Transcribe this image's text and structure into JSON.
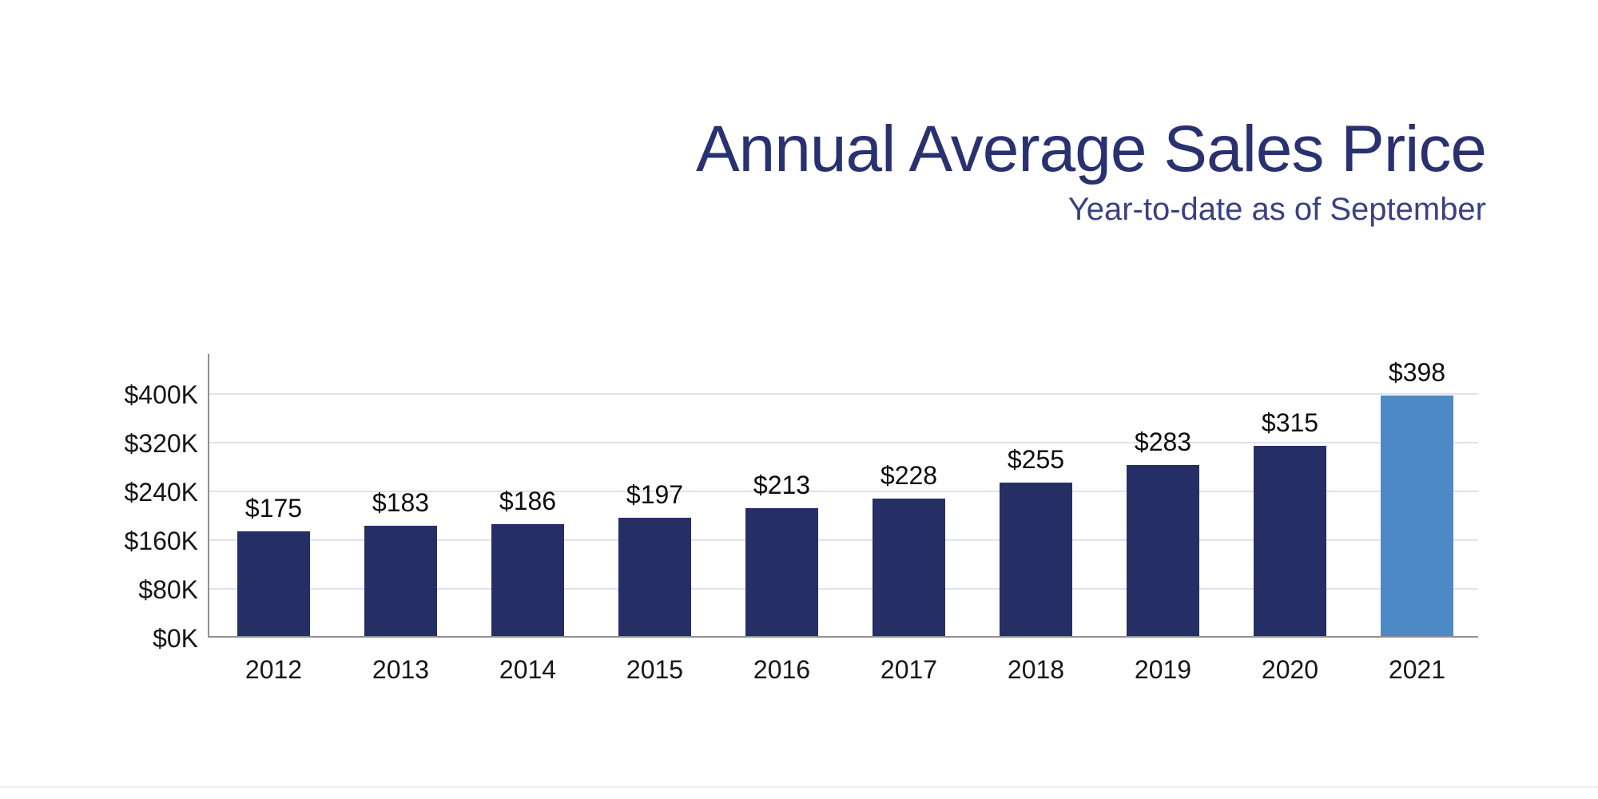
{
  "header": {
    "title": "Annual Average Sales Price",
    "subtitle": "Year-to-date as of September",
    "title_color": "#2a3170",
    "subtitle_color": "#3a4182"
  },
  "chart_data": {
    "type": "bar",
    "title": "Annual Average Sales Price",
    "subtitle": "Year-to-date as of September",
    "categories": [
      "2012",
      "2013",
      "2014",
      "2015",
      "2016",
      "2017",
      "2018",
      "2019",
      "2020",
      "2021"
    ],
    "values": [
      175,
      183,
      186,
      197,
      213,
      228,
      255,
      283,
      315,
      398
    ],
    "value_labels": [
      "$175",
      "$183",
      "$186",
      "$197",
      "$213",
      "$228",
      "$255",
      "$283",
      "$315",
      "$398"
    ],
    "unit": "thousands of dollars",
    "y_ticks": [
      {
        "value": 0,
        "label": "$0K"
      },
      {
        "value": 80,
        "label": "$80K"
      },
      {
        "value": 160,
        "label": "$160K"
      },
      {
        "value": 240,
        "label": "$240K"
      },
      {
        "value": 320,
        "label": "$320K"
      },
      {
        "value": 400,
        "label": "$400K"
      }
    ],
    "ylim": [
      0,
      465
    ],
    "grid": true,
    "legend": false,
    "highlight_index": 9,
    "colors": {
      "bar": "#262e66",
      "highlight_bar": "#4d8ac5",
      "gridline": "#dde3ef",
      "axis": "#8f8f94",
      "tick_label": "#161616",
      "value_label": "#0d0d0d"
    }
  }
}
